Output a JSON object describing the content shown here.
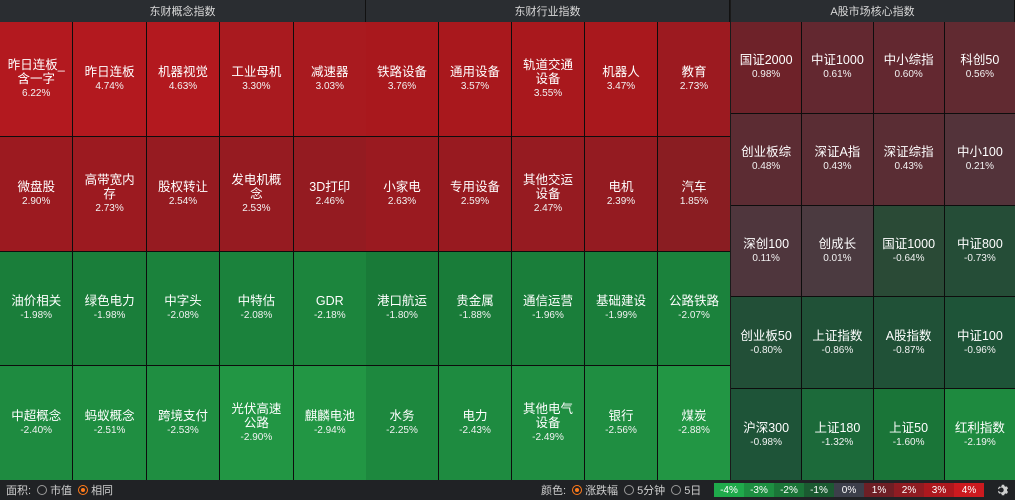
{
  "panels": [
    {
      "id": "concept",
      "title": "东财概念指数",
      "cells": [
        {
          "name": "昨日连板_含一字",
          "value": "6.22%",
          "color": "#b3191f"
        },
        {
          "name": "昨日连板",
          "value": "4.74%",
          "color": "#b3191f"
        },
        {
          "name": "机器视觉",
          "value": "4.63%",
          "color": "#b3191f"
        },
        {
          "name": "工业母机",
          "value": "3.30%",
          "color": "#a91a1f"
        },
        {
          "name": "减速器",
          "value": "3.03%",
          "color": "#a91a1f"
        },
        {
          "name": "微盘股",
          "value": "2.90%",
          "color": "#9c1a20"
        },
        {
          "name": "高带宽内存",
          "value": "2.73%",
          "color": "#9c1a20"
        },
        {
          "name": "股权转让",
          "value": "2.54%",
          "color": "#961b21"
        },
        {
          "name": "发电机概念",
          "value": "2.53%",
          "color": "#961b21"
        },
        {
          "name": "3D打印",
          "value": "2.46%",
          "color": "#941b21"
        },
        {
          "name": "油价相关",
          "value": "-1.98%",
          "color": "#1a7e3a"
        },
        {
          "name": "绿色电力",
          "value": "-1.98%",
          "color": "#1a7e3a"
        },
        {
          "name": "中字头",
          "value": "-2.08%",
          "color": "#1b823c"
        },
        {
          "name": "中特估",
          "value": "-2.08%",
          "color": "#1b823c"
        },
        {
          "name": "GDR",
          "value": "-2.18%",
          "color": "#1c853d"
        },
        {
          "name": "中超概念",
          "value": "-2.40%",
          "color": "#1e8b40"
        },
        {
          "name": "蚂蚁概念",
          "value": "-2.51%",
          "color": "#1f8e41"
        },
        {
          "name": "跨境支付",
          "value": "-2.53%",
          "color": "#1f8e41"
        },
        {
          "name": "光伏高速公路",
          "value": "-2.90%",
          "color": "#229644"
        },
        {
          "name": "麒麟电池",
          "value": "-2.94%",
          "color": "#229644"
        }
      ]
    },
    {
      "id": "industry",
      "title": "东财行业指数",
      "cells": [
        {
          "name": "铁路设备",
          "value": "3.76%",
          "color": "#a9181d"
        },
        {
          "name": "通用设备",
          "value": "3.57%",
          "color": "#a9181d"
        },
        {
          "name": "轨道交通设备",
          "value": "3.55%",
          "color": "#a9181d"
        },
        {
          "name": "机器人",
          "value": "3.47%",
          "color": "#a9181d"
        },
        {
          "name": "教育",
          "value": "2.73%",
          "color": "#9c1a20"
        },
        {
          "name": "小家电",
          "value": "2.63%",
          "color": "#9a1a20"
        },
        {
          "name": "专用设备",
          "value": "2.59%",
          "color": "#981a20"
        },
        {
          "name": "其他交运设备",
          "value": "2.47%",
          "color": "#961b21"
        },
        {
          "name": "电机",
          "value": "2.39%",
          "color": "#941b21"
        },
        {
          "name": "汽车",
          "value": "1.85%",
          "color": "#8a1d22"
        },
        {
          "name": "港口航运",
          "value": "-1.80%",
          "color": "#197a38"
        },
        {
          "name": "贵金属",
          "value": "-1.88%",
          "color": "#197c39"
        },
        {
          "name": "通信运营",
          "value": "-1.96%",
          "color": "#1a7e3a"
        },
        {
          "name": "基础建设",
          "value": "-1.99%",
          "color": "#1a7e3a"
        },
        {
          "name": "公路铁路",
          "value": "-2.07%",
          "color": "#1b823c"
        },
        {
          "name": "水务",
          "value": "-2.25%",
          "color": "#1d883e"
        },
        {
          "name": "电力",
          "value": "-2.43%",
          "color": "#1e8b40"
        },
        {
          "name": "其他电气设备",
          "value": "-2.49%",
          "color": "#1f8e41"
        },
        {
          "name": "银行",
          "value": "-2.56%",
          "color": "#1f8e41"
        },
        {
          "name": "煤炭",
          "value": "-2.88%",
          "color": "#229644"
        }
      ]
    },
    {
      "id": "core",
      "title": "A股市场核心指数",
      "cells": [
        {
          "name": "国证2000",
          "value": "0.98%",
          "color": "#6e2229"
        },
        {
          "name": "中证1000",
          "value": "0.61%",
          "color": "#632830"
        },
        {
          "name": "中小综指",
          "value": "0.60%",
          "color": "#632830"
        },
        {
          "name": "科创50",
          "value": "0.56%",
          "color": "#612a31"
        },
        {
          "name": "创业板综",
          "value": "0.48%",
          "color": "#5c2c33"
        },
        {
          "name": "深证A指",
          "value": "0.43%",
          "color": "#5a2d34"
        },
        {
          "name": "深证综指",
          "value": "0.43%",
          "color": "#5a2d34"
        },
        {
          "name": "中小100",
          "value": "0.21%",
          "color": "#53333a"
        },
        {
          "name": "深创100",
          "value": "0.11%",
          "color": "#4f363d"
        },
        {
          "name": "创成长",
          "value": "0.01%",
          "color": "#4b3a40"
        },
        {
          "name": "国证1000",
          "value": "-0.64%",
          "color": "#2a4a36"
        },
        {
          "name": "中证800",
          "value": "-0.73%",
          "color": "#254d37"
        },
        {
          "name": "创业板50",
          "value": "-0.80%",
          "color": "#224f37"
        },
        {
          "name": "上证指数",
          "value": "-0.86%",
          "color": "#205137"
        },
        {
          "name": "A股指数",
          "value": "-0.87%",
          "color": "#205137"
        },
        {
          "name": "中证100",
          "value": "-0.96%",
          "color": "#1e5438"
        },
        {
          "name": "沪深300",
          "value": "-0.98%",
          "color": "#1e5438"
        },
        {
          "name": "上证180",
          "value": "-1.32%",
          "color": "#1c6a3a"
        },
        {
          "name": "上证50",
          "value": "-1.60%",
          "color": "#1a7538"
        },
        {
          "name": "红利指数",
          "value": "-2.19%",
          "color": "#1e8a3f"
        }
      ]
    }
  ],
  "footer": {
    "area_label": "面积:",
    "area_options": [
      {
        "label": "市值",
        "selected": false
      },
      {
        "label": "相同",
        "selected": true
      }
    ],
    "color_label": "颜色:",
    "color_options": [
      {
        "label": "涨跌幅",
        "selected": true
      },
      {
        "label": "5分钟",
        "selected": false
      },
      {
        "label": "5日",
        "selected": false
      }
    ],
    "legend": [
      {
        "label": "-4%",
        "color": "#1faa4b"
      },
      {
        "label": "-3%",
        "color": "#1d8f41"
      },
      {
        "label": "-2%",
        "color": "#1b7538"
      },
      {
        "label": "-1%",
        "color": "#1b5a31"
      },
      {
        "label": "0%",
        "color": "#3c3f4a"
      },
      {
        "label": "1%",
        "color": "#6e1f25"
      },
      {
        "label": "2%",
        "color": "#8f1c22"
      },
      {
        "label": "3%",
        "color": "#ad181e"
      },
      {
        "label": "4%",
        "color": "#cc1a1f"
      }
    ],
    "settings_icon": "gear-icon"
  }
}
